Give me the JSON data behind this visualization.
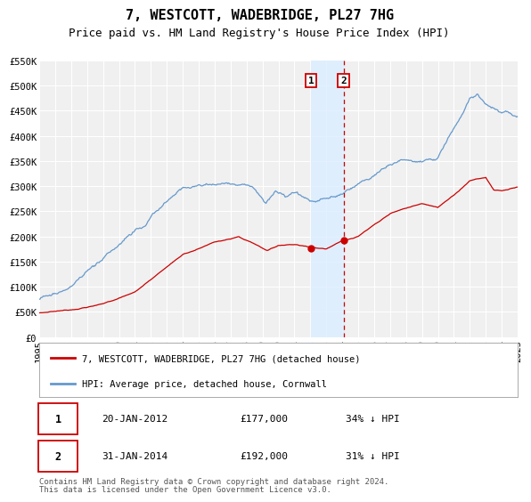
{
  "title": "7, WESTCOTT, WADEBRIDGE, PL27 7HG",
  "subtitle": "Price paid vs. HM Land Registry's House Price Index (HPI)",
  "background_color": "#ffffff",
  "plot_bg_color": "#f0f0f0",
  "grid_color": "#ffffff",
  "legend_label_red": "7, WESTCOTT, WADEBRIDGE, PL27 7HG (detached house)",
  "legend_label_blue": "HPI: Average price, detached house, Cornwall",
  "marker1_date_num": 2012.056,
  "marker1_value": 177000,
  "marker1_date_str": "20-JAN-2012",
  "marker1_price_str": "£177,000",
  "marker1_hpi_str": "34% ↓ HPI",
  "marker2_date_num": 2014.083,
  "marker2_value": 192000,
  "marker2_date_str": "31-JAN-2014",
  "marker2_price_str": "£192,000",
  "marker2_hpi_str": "31% ↓ HPI",
  "shade_x1": 2012.056,
  "shade_x2": 2014.083,
  "footnote_line1": "Contains HM Land Registry data © Crown copyright and database right 2024.",
  "footnote_line2": "This data is licensed under the Open Government Licence v3.0.",
  "ylim": [
    0,
    550000
  ],
  "xlim": [
    1995,
    2025
  ],
  "yticks": [
    0,
    50000,
    100000,
    150000,
    200000,
    250000,
    300000,
    350000,
    400000,
    450000,
    500000,
    550000
  ],
  "ytick_labels": [
    "£0",
    "£50K",
    "£100K",
    "£150K",
    "£200K",
    "£250K",
    "£300K",
    "£350K",
    "£400K",
    "£450K",
    "£500K",
    "£550K"
  ],
  "xticks": [
    1995,
    1996,
    1997,
    1998,
    1999,
    2000,
    2001,
    2002,
    2003,
    2004,
    2005,
    2006,
    2007,
    2008,
    2009,
    2010,
    2011,
    2012,
    2013,
    2014,
    2015,
    2016,
    2017,
    2018,
    2019,
    2020,
    2021,
    2022,
    2023,
    2024,
    2025
  ],
  "red_line_color": "#cc0000",
  "blue_line_color": "#6699cc",
  "dashed_line_color": "#cc0000",
  "shade_color": "#ddeeff",
  "marker_box_color": "#cc0000",
  "title_fontsize": 11,
  "subtitle_fontsize": 9,
  "tick_fontsize": 7.5,
  "legend_fontsize": 7.5,
  "table_fontsize": 8,
  "footnote_fontsize": 6.5
}
